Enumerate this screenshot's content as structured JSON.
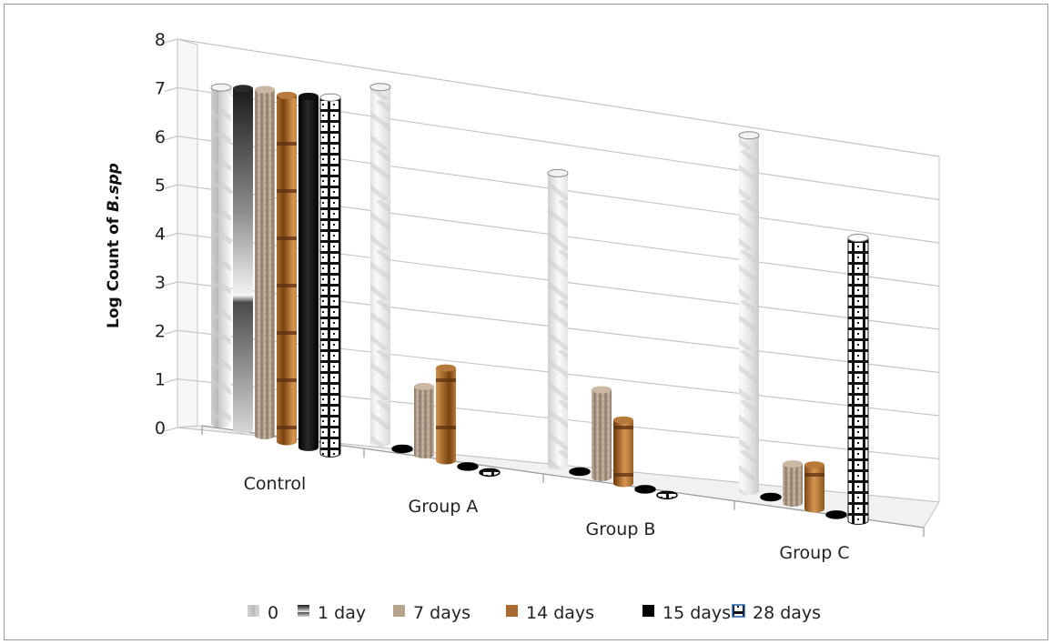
{
  "chart_data": {
    "type": "bar",
    "style": "3d-cylinder",
    "categories": [
      "Control",
      "Group A",
      "Group B",
      "Group C"
    ],
    "series": [
      {
        "name": "0",
        "values": [
          6.9,
          7.3,
          6.0,
          7.3
        ],
        "color": "#e4e4e4",
        "pattern": "marble"
      },
      {
        "name": "1 day",
        "values": [
          7.0,
          0.0,
          0.0,
          0.0
        ],
        "color": "#444444",
        "pattern": "gradient"
      },
      {
        "name": "7 days",
        "values": [
          7.1,
          1.4,
          1.8,
          0.8
        ],
        "color": "#b7a48f",
        "pattern": "fabric"
      },
      {
        "name": "14 days",
        "values": [
          7.1,
          1.9,
          1.3,
          0.9
        ],
        "color": "#a86a30",
        "pattern": "wood"
      },
      {
        "name": "15 days",
        "values": [
          7.2,
          0.0,
          0.0,
          0.0
        ],
        "color": "#000000",
        "pattern": "solid"
      },
      {
        "name": "28 days",
        "values": [
          7.3,
          0.0,
          0.0,
          5.8
        ],
        "color": "#222222",
        "pattern": "checker"
      }
    ],
    "ylabel_prefix": "Log  Count of ",
    "ylabel_italic": "B.spp",
    "y_ticks": [
      "0",
      "1",
      "2",
      "3",
      "4",
      "5",
      "6",
      "7",
      "8"
    ],
    "ylim": [
      0,
      8
    ],
    "grid": true,
    "legend_position": "bottom"
  }
}
